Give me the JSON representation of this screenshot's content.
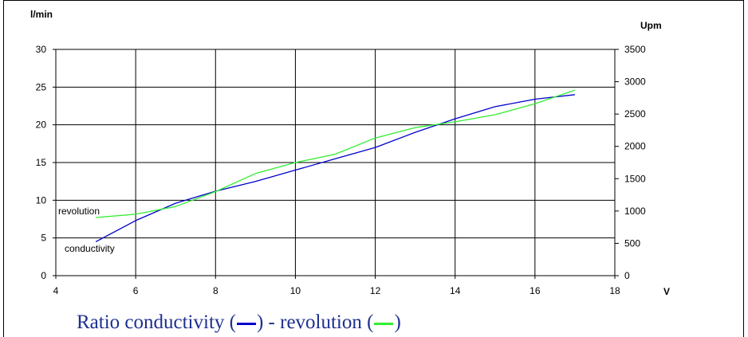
{
  "chart_data": {
    "type": "line",
    "xlabel": "V",
    "ylabel_left": "l/min",
    "ylabel_right": "Upm",
    "xlim": [
      4,
      18
    ],
    "ylim_left": [
      0,
      30
    ],
    "ylim_right": [
      0,
      3500
    ],
    "x_ticks": [
      "4",
      "6",
      "8",
      "10",
      "12",
      "14",
      "16",
      "18"
    ],
    "y_left_ticks": [
      "0",
      "5",
      "10",
      "15",
      "20",
      "25",
      "30"
    ],
    "y_right_ticks": [
      "0",
      "500",
      "1000",
      "1500",
      "2000",
      "2500",
      "3000",
      "3500"
    ],
    "grid": true,
    "series": [
      {
        "name": "conductivity",
        "axis": "left",
        "color": "#0000cc",
        "points": [
          [
            5.0,
            4.5
          ],
          [
            6.0,
            7.3
          ],
          [
            7.0,
            9.6
          ],
          [
            8.0,
            11.2
          ],
          [
            9.0,
            12.5
          ],
          [
            10.0,
            14.0
          ],
          [
            11.0,
            15.5
          ],
          [
            12.0,
            17.0
          ],
          [
            13.0,
            19.0
          ],
          [
            14.0,
            20.8
          ],
          [
            15.0,
            22.4
          ],
          [
            16.0,
            23.4
          ],
          [
            17.0,
            24.0
          ]
        ]
      },
      {
        "name": "revolution",
        "axis": "right",
        "color": "#33ee33",
        "points": [
          [
            5.0,
            900
          ],
          [
            6.0,
            950
          ],
          [
            7.0,
            1070
          ],
          [
            8.0,
            1300
          ],
          [
            9.0,
            1580
          ],
          [
            10.0,
            1750
          ],
          [
            11.0,
            1880
          ],
          [
            12.0,
            2130
          ],
          [
            13.0,
            2290
          ],
          [
            14.0,
            2380
          ],
          [
            15.0,
            2490
          ],
          [
            16.0,
            2660
          ],
          [
            17.0,
            2870
          ]
        ]
      }
    ],
    "annotations": [
      {
        "text": "revolution",
        "x": 5.0,
        "y_right": 900
      },
      {
        "text": "conductivity",
        "x": 5.0,
        "y_left": 4.5
      }
    ]
  },
  "caption": {
    "prefix": "Ratio conductivity (",
    "middle": ") - revolution (",
    "suffix": ")",
    "blue": "#0000cc",
    "green": "#33ee33"
  }
}
